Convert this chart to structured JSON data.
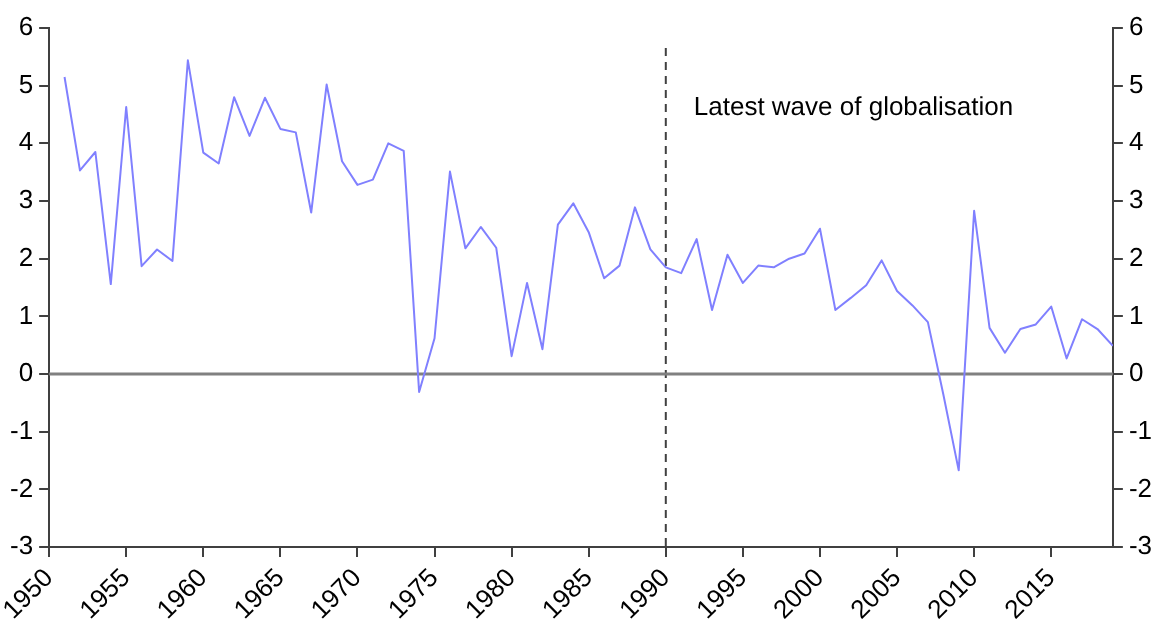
{
  "chart_data": {
    "type": "line",
    "x": [
      1951,
      1952,
      1953,
      1954,
      1955,
      1956,
      1957,
      1958,
      1959,
      1960,
      1961,
      1962,
      1963,
      1964,
      1965,
      1966,
      1967,
      1968,
      1969,
      1970,
      1971,
      1972,
      1973,
      1974,
      1975,
      1976,
      1977,
      1978,
      1979,
      1980,
      1981,
      1982,
      1983,
      1984,
      1985,
      1986,
      1987,
      1988,
      1989,
      1990,
      1991,
      1992,
      1993,
      1994,
      1995,
      1996,
      1997,
      1998,
      1999,
      2000,
      2001,
      2002,
      2003,
      2004,
      2005,
      2006,
      2007,
      2008,
      2009,
      2010,
      2011,
      2012,
      2013,
      2014,
      2015,
      2016,
      2017,
      2018,
      2019
    ],
    "series": [
      {
        "color": "#8080ff",
        "values": [
          5.15,
          3.53,
          3.85,
          1.56,
          4.63,
          1.87,
          2.16,
          1.96,
          5.44,
          3.84,
          3.65,
          4.8,
          4.13,
          4.79,
          4.25,
          4.19,
          2.8,
          5.02,
          3.69,
          3.28,
          3.37,
          4.0,
          3.87,
          -0.31,
          0.62,
          3.51,
          2.18,
          2.55,
          2.19,
          0.31,
          1.58,
          0.43,
          2.59,
          2.96,
          2.46,
          1.66,
          1.88,
          2.89,
          2.16,
          1.85,
          1.75,
          2.34,
          1.11,
          2.07,
          1.58,
          1.88,
          1.85,
          2.0,
          2.09,
          2.52,
          1.11,
          1.32,
          1.54,
          1.97,
          1.44,
          1.19,
          0.9,
          -0.35,
          -1.67,
          2.83,
          0.8,
          0.37,
          0.78,
          0.86,
          1.17,
          0.27,
          0.95,
          0.78,
          0.49
        ]
      }
    ],
    "xlim": [
      1950,
      2019
    ],
    "xticks": [
      1950,
      1955,
      1960,
      1965,
      1970,
      1975,
      1980,
      1985,
      1990,
      1995,
      2000,
      2005,
      2010,
      2015
    ],
    "ylim": [
      -3,
      6
    ],
    "yticks": [
      -3,
      -2,
      -1,
      0,
      1,
      2,
      3,
      4,
      5,
      6
    ],
    "y2lim": [
      -3,
      6
    ],
    "y2ticks": [
      -3,
      -2,
      -1,
      0,
      1,
      2,
      3,
      4,
      5,
      6
    ],
    "ref_lines": [
      {
        "axis": "x",
        "value": 1990,
        "label": "Latest wave of globalisation",
        "color": "#404040",
        "line_style": "dashed"
      },
      {
        "axis": "y",
        "value": 0,
        "color": "#808080",
        "line_style": "solid"
      }
    ],
    "grid": false,
    "legend": false,
    "marker": "none",
    "line_style": "solid"
  }
}
